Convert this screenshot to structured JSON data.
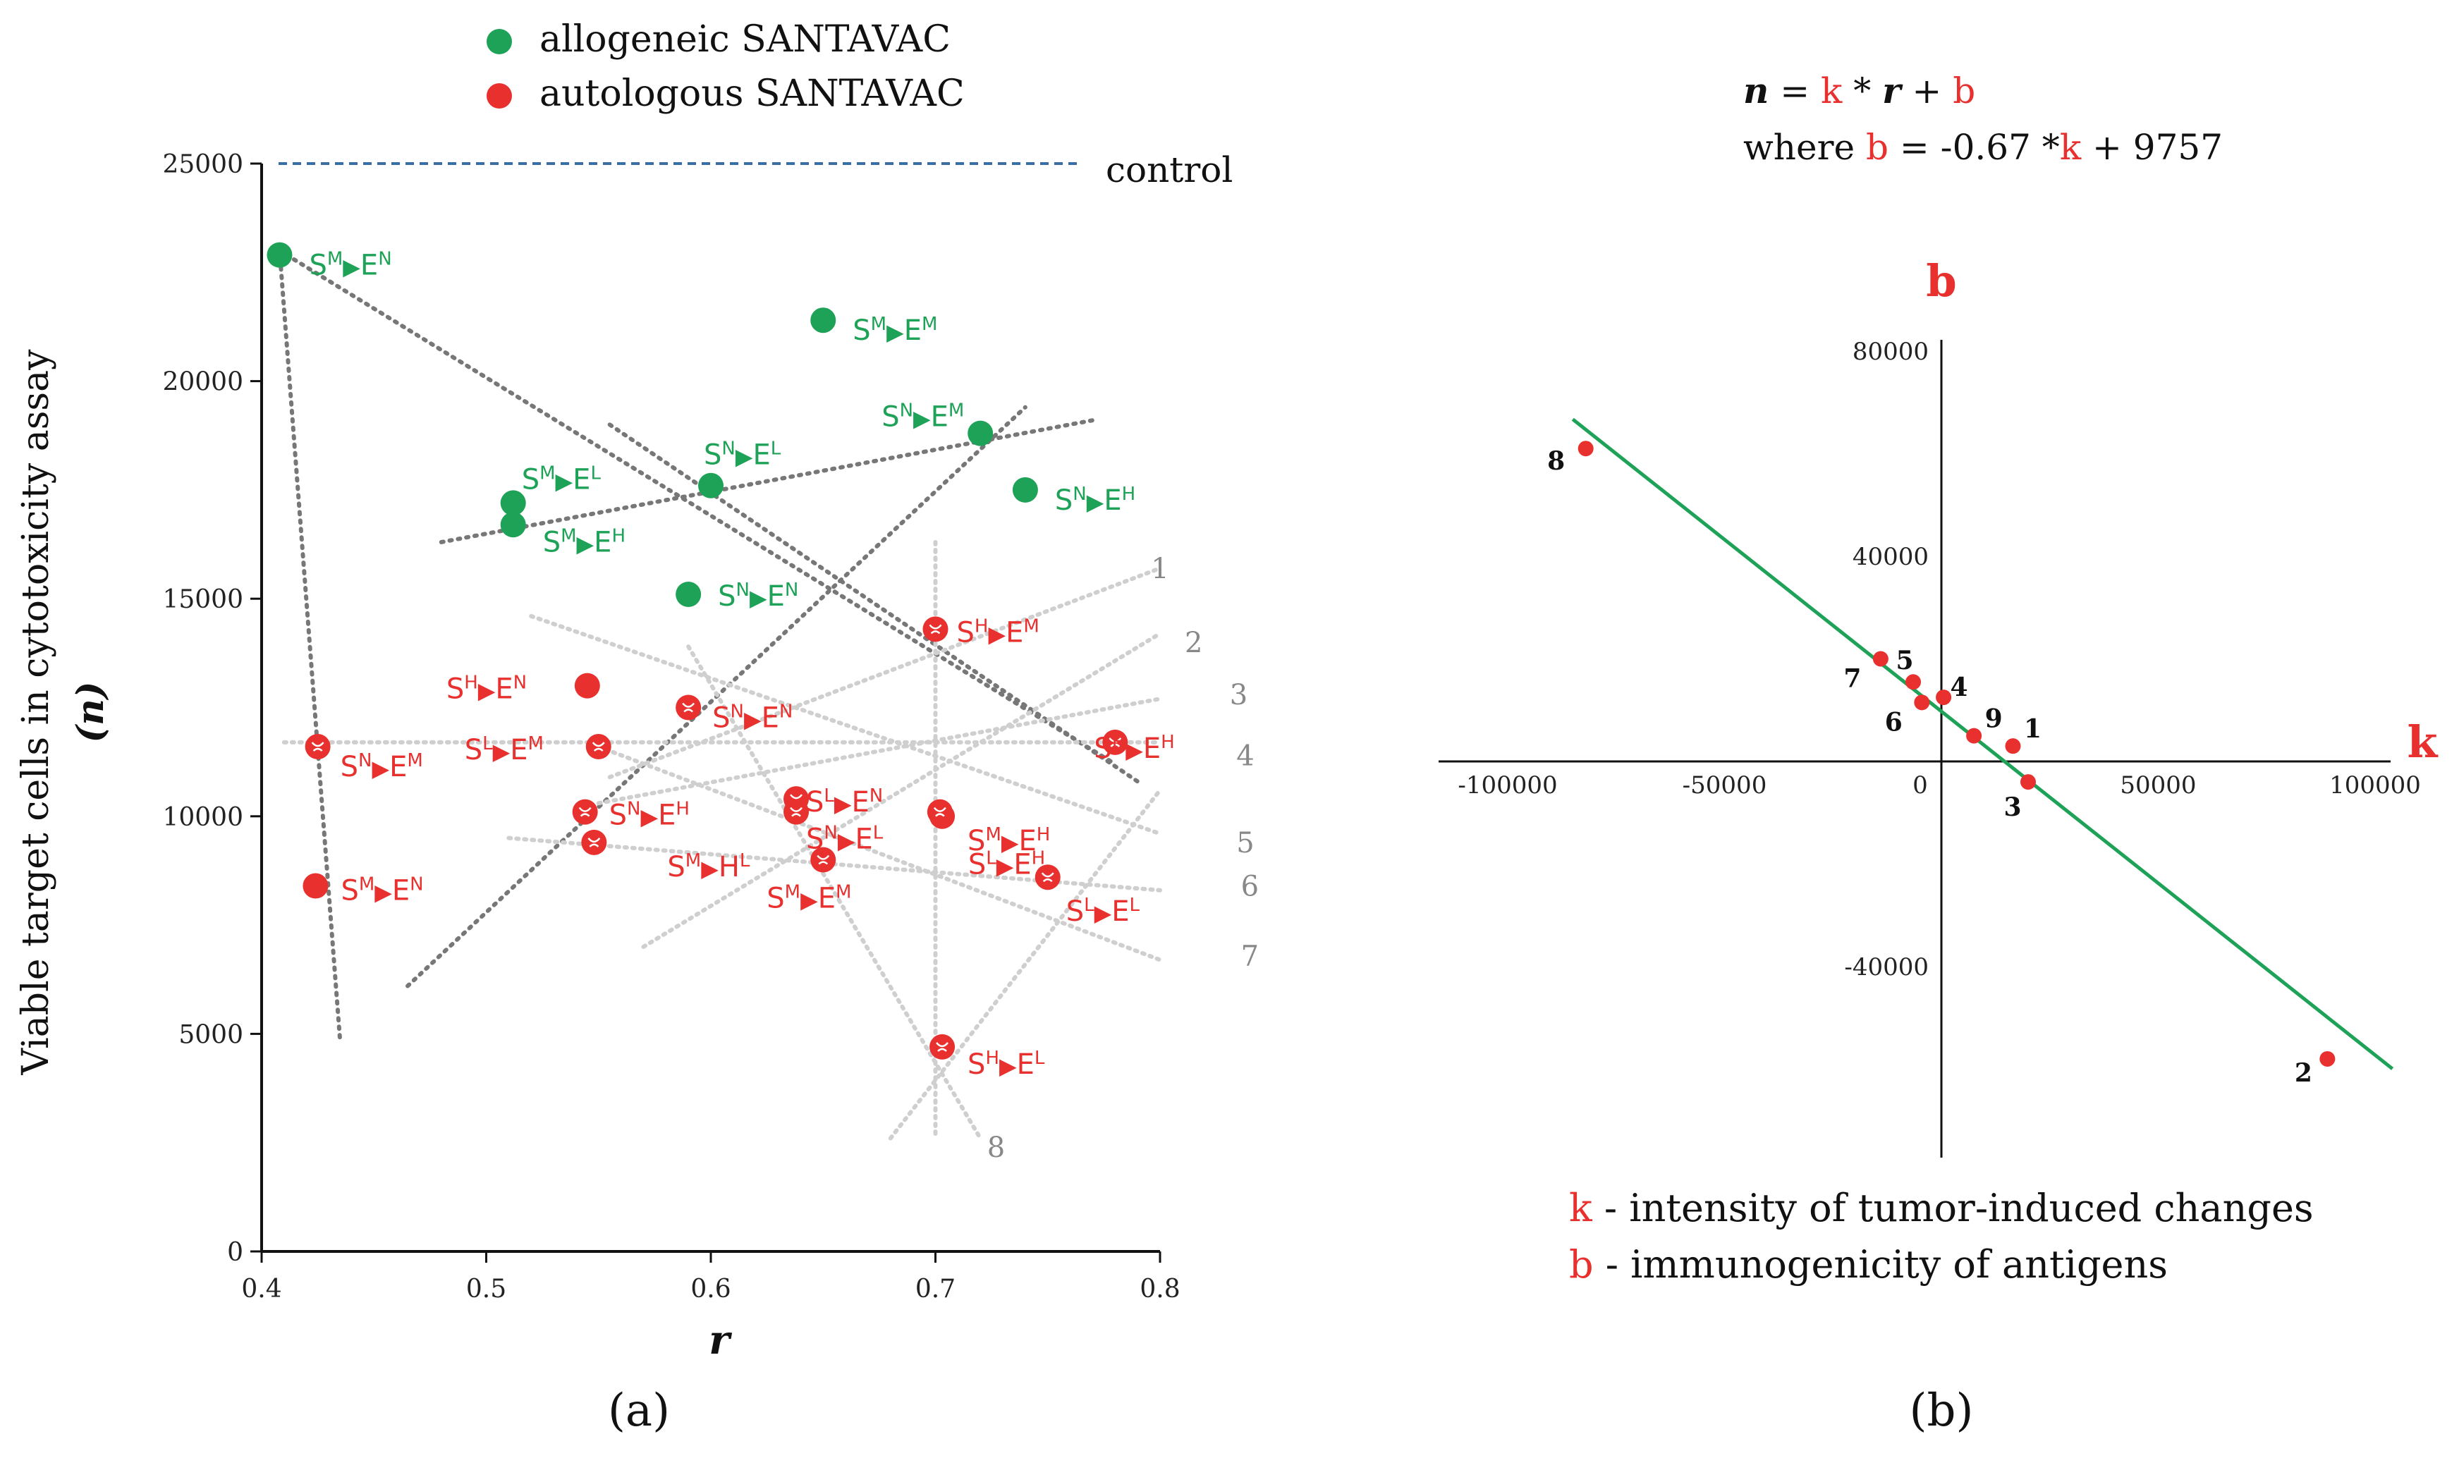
{
  "chart_data": [
    {
      "panel": "(a)",
      "type": "scatter",
      "xlabel": "r",
      "ylabel": "Viable target cells in cytotoxicity assay",
      "ylabel_sub": "(n)",
      "xlim": [
        0.4,
        0.8
      ],
      "ylim": [
        0,
        25000
      ],
      "xticks": [
        "0.4",
        "0.5",
        "0.6",
        "0.7",
        "0.8"
      ],
      "yticks": [
        "0",
        "5000",
        "10000",
        "15000",
        "20000",
        "25000"
      ],
      "control": {
        "label": "control",
        "y": 25000
      },
      "legend": [
        {
          "name": "allogeneic  SANTAVAC",
          "color": "#1ea257"
        },
        {
          "name": "autologous SANTAVAC",
          "color": "#e8312e"
        }
      ],
      "series": [
        {
          "name": "allogeneic  SANTAVAC",
          "color": "#1ea257",
          "points": [
            {
              "x": 0.408,
              "y": 22900,
              "s": "M",
              "e": "N"
            },
            {
              "x": 0.65,
              "y": 21400,
              "s": "M",
              "e": "M"
            },
            {
              "x": 0.72,
              "y": 18800,
              "s": "N",
              "e": "M"
            },
            {
              "x": 0.6,
              "y": 17600,
              "s": "N",
              "e": "L"
            },
            {
              "x": 0.74,
              "y": 17500,
              "s": "N",
              "e": "H"
            },
            {
              "x": 0.512,
              "y": 17200,
              "s": "M",
              "e": "L"
            },
            {
              "x": 0.512,
              "y": 16700,
              "s": "M",
              "e": "H"
            },
            {
              "x": 0.59,
              "y": 15100,
              "s": "N",
              "e": "N"
            }
          ]
        },
        {
          "name": "autologous SANTAVAC",
          "color": "#e8312e",
          "points": [
            {
              "x": 0.7,
              "y": 14300,
              "s": "H",
              "e": "M"
            },
            {
              "x": 0.545,
              "y": 13000,
              "s": "H",
              "e": "N"
            },
            {
              "x": 0.59,
              "y": 12500,
              "s": "N",
              "e": "N"
            },
            {
              "x": 0.55,
              "y": 11600,
              "s": "L",
              "e": "M"
            },
            {
              "x": 0.425,
              "y": 11600,
              "s": "N",
              "e": "M"
            },
            {
              "x": 0.78,
              "y": 11700,
              "s": "H",
              "e": "H"
            },
            {
              "x": 0.638,
              "y": 10400,
              "s": "L",
              "e": "N"
            },
            {
              "x": 0.638,
              "y": 10100,
              "s": "N",
              "e": "L"
            },
            {
              "x": 0.544,
              "y": 10100,
              "s": "N",
              "e": "H"
            },
            {
              "x": 0.703,
              "y": 10000,
              "s": "M",
              "e": "H"
            },
            {
              "x": 0.702,
              "y": 10100,
              "s": "L",
              "e": "H"
            },
            {
              "x": 0.548,
              "y": 9400,
              "s": "M",
              "e": "L",
              "e_letter": "H"
            },
            {
              "x": 0.65,
              "y": 9000,
              "s": "M",
              "e": "M"
            },
            {
              "x": 0.75,
              "y": 8600,
              "s": "L",
              "e": "L"
            },
            {
              "x": 0.424,
              "y": 8400,
              "s": "M",
              "e": "N"
            },
            {
              "x": 0.703,
              "y": 4700,
              "s": "H",
              "e": "L"
            }
          ]
        }
      ],
      "rays": [
        "1",
        "2",
        "3",
        "4",
        "5",
        "6",
        "7",
        "8"
      ]
    },
    {
      "panel": "(b)",
      "type": "scatter",
      "formula_line1": {
        "n": "n",
        "eq": " = ",
        "k": "k",
        "times": " * ",
        "r": "r",
        "plus": " + ",
        "b": "b"
      },
      "formula_line2": {
        "where": "where ",
        "b": "b",
        "eq": " = -0.67 *",
        "k": "k",
        "rest": " + 9757"
      },
      "xlabel": "k",
      "ylabel": "b",
      "xlim": [
        -110000,
        100000
      ],
      "ylim": [
        -75000,
        80000
      ],
      "xticks": [
        "-100000",
        "-50000",
        "0",
        "50000",
        "100000"
      ],
      "yticks": [
        "80000",
        "40000",
        "-40000"
      ],
      "fit_line": {
        "slope": -0.67,
        "intercept": 9757
      },
      "points": [
        {
          "label": "8",
          "k": -82000,
          "b": 61000
        },
        {
          "label": "7",
          "k": -14000,
          "b": 20000
        },
        {
          "label": "5",
          "k": -6500,
          "b": 15500
        },
        {
          "label": "6",
          "k": -4500,
          "b": 11500
        },
        {
          "label": "4",
          "k": 500,
          "b": 12500
        },
        {
          "label": "9",
          "k": 7500,
          "b": 5000
        },
        {
          "label": "1",
          "k": 16500,
          "b": 3000
        },
        {
          "label": "3",
          "k": 20000,
          "b": -4000
        },
        {
          "label": "2",
          "k": 89000,
          "b": -58000
        }
      ],
      "legend": [
        {
          "sym": "k",
          "text": " - intensity of tumor-induced changes"
        },
        {
          "sym": "b",
          "text": " - immunogenicity of antigens"
        }
      ]
    }
  ],
  "captions": [
    "(a)",
    "(b)"
  ],
  "colors": {
    "green": "#1ea257",
    "red": "#e8312e",
    "grey": "#777777",
    "control": "#3b6ea5",
    "fit": "#1ea257"
  }
}
